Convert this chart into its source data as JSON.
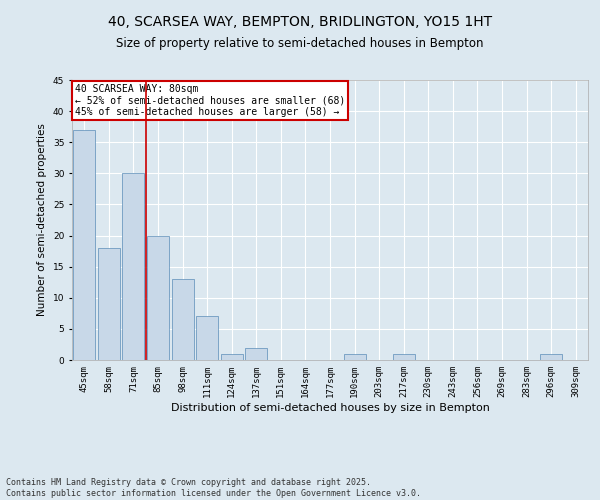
{
  "title": "40, SCARSEA WAY, BEMPTON, BRIDLINGTON, YO15 1HT",
  "subtitle": "Size of property relative to semi-detached houses in Bempton",
  "xlabel": "Distribution of semi-detached houses by size in Bempton",
  "ylabel": "Number of semi-detached properties",
  "categories": [
    "45sqm",
    "58sqm",
    "71sqm",
    "85sqm",
    "98sqm",
    "111sqm",
    "124sqm",
    "137sqm",
    "151sqm",
    "164sqm",
    "177sqm",
    "190sqm",
    "203sqm",
    "217sqm",
    "230sqm",
    "243sqm",
    "256sqm",
    "269sqm",
    "283sqm",
    "296sqm",
    "309sqm"
  ],
  "values": [
    37,
    18,
    30,
    20,
    13,
    7,
    1,
    2,
    0,
    0,
    0,
    1,
    0,
    1,
    0,
    0,
    0,
    0,
    0,
    1,
    0
  ],
  "bar_color": "#c8d8e8",
  "bar_edge_color": "#5b8db8",
  "background_color": "#dce8f0",
  "grid_color": "#ffffff",
  "annotation_box_text": "40 SCARSEA WAY: 80sqm\n← 52% of semi-detached houses are smaller (68)\n45% of semi-detached houses are larger (58) →",
  "annotation_box_color": "#cc0000",
  "red_line_x": 2.5,
  "ylim": [
    0,
    45
  ],
  "yticks": [
    0,
    5,
    10,
    15,
    20,
    25,
    30,
    35,
    40,
    45
  ],
  "footnote": "Contains HM Land Registry data © Crown copyright and database right 2025.\nContains public sector information licensed under the Open Government Licence v3.0.",
  "title_fontsize": 10,
  "subtitle_fontsize": 8.5,
  "xlabel_fontsize": 8,
  "ylabel_fontsize": 7.5,
  "tick_fontsize": 6.5,
  "annot_fontsize": 7,
  "footnote_fontsize": 6
}
